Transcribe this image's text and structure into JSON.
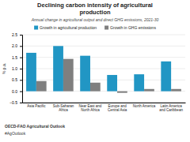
{
  "chart_data": {
    "type": "bar",
    "title": "Declining carbon intensity of agricultural\nproduction",
    "subtitle": "Annual change in agricultural output and direct GHG emissions, 2021-30",
    "ylabel": "% p.a.",
    "categories": [
      "Asia Pacific",
      "Sub-Saharan\nAfrica",
      "Near East and\nNorth Africa",
      "Europe and\nCentral Asia",
      "North America",
      "Latin America\nand Caribbean"
    ],
    "series": [
      {
        "name": "Growth in agricultural production",
        "color": "#2196c4",
        "values": [
          1.7,
          2.0,
          1.57,
          0.72,
          0.75,
          1.32
        ]
      },
      {
        "name": "Growth in GHG emissions",
        "color": "#7f7f7f",
        "values": [
          0.45,
          1.43,
          0.38,
          -0.07,
          0.1,
          0.1
        ]
      }
    ],
    "ylim": [
      -0.5,
      2.5
    ],
    "yticks": [
      {
        "value": -0.5,
        "label": "−0.5"
      },
      {
        "value": 0.0,
        "label": "0.0"
      },
      0.5,
      {
        "value": 1.0,
        "label": "1.0"
      },
      1.5,
      {
        "value": 2.0,
        "label": "2.0"
      },
      2.5
    ],
    "grid": true,
    "legend": "top",
    "annotations": [
      "OECD-FAO Agricultural Outlook",
      "#AgOutlook"
    ]
  }
}
